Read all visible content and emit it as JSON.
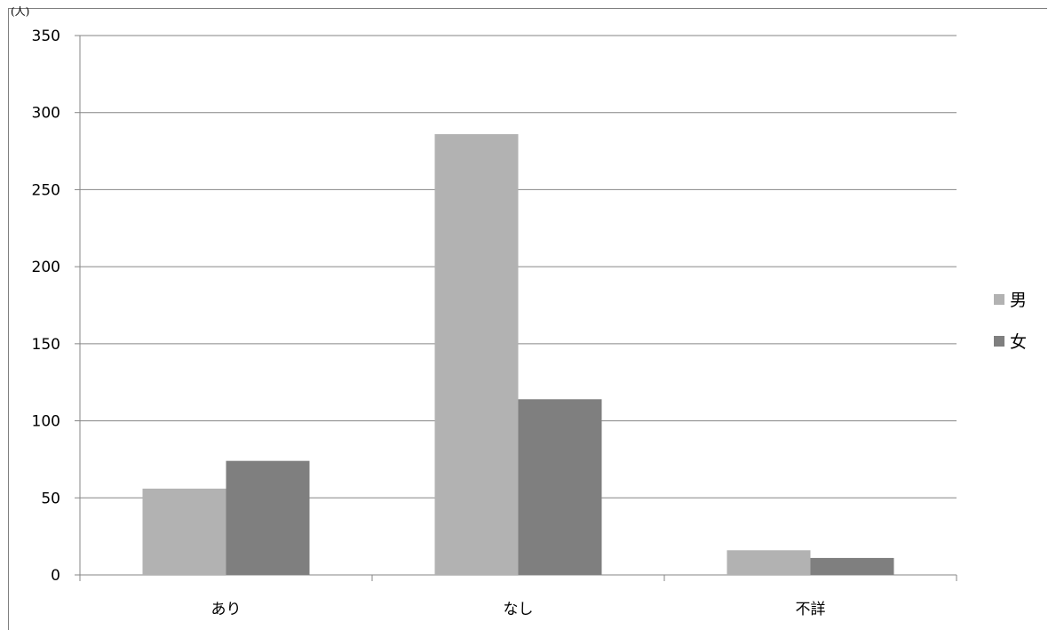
{
  "unit_label": "(人)",
  "chart_data": {
    "type": "bar",
    "categories": [
      "あり",
      "なし",
      "不詳"
    ],
    "series": [
      {
        "name": "男",
        "values": [
          56,
          286,
          16
        ],
        "color": "#b2b2b2"
      },
      {
        "name": "女",
        "values": [
          74,
          114,
          11
        ],
        "color": "#7f7f7f"
      }
    ],
    "ylim": [
      0,
      350
    ],
    "yticks": [
      0,
      50,
      100,
      150,
      200,
      250,
      300,
      350
    ],
    "grid": true,
    "legend_position": "right",
    "title": "",
    "xlabel": "",
    "ylabel": ""
  }
}
